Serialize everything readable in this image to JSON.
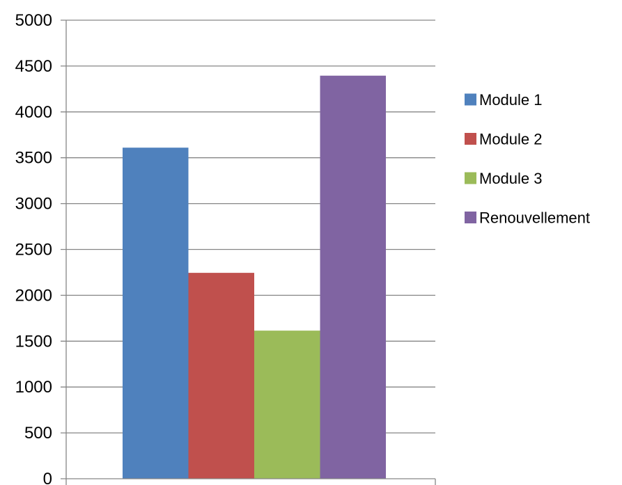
{
  "chart_data": {
    "type": "bar",
    "categories": [
      ""
    ],
    "series": [
      {
        "name": "Module 1",
        "values": [
          3610
        ],
        "color": "#4F81BD"
      },
      {
        "name": "Module 2",
        "values": [
          2245
        ],
        "color": "#C0504D"
      },
      {
        "name": "Module 3",
        "values": [
          1615
        ],
        "color": "#9BBB59"
      },
      {
        "name": "Renouvellement",
        "values": [
          4395
        ],
        "color": "#8064A2"
      }
    ],
    "ylim": [
      0,
      5000
    ],
    "y_ticks": [
      "0",
      "500",
      "1000",
      "1500",
      "2000",
      "2500",
      "3000",
      "3500",
      "4000",
      "4500",
      "5000"
    ],
    "grid": true,
    "legend_position": "right",
    "gridline_color": "#868686"
  }
}
